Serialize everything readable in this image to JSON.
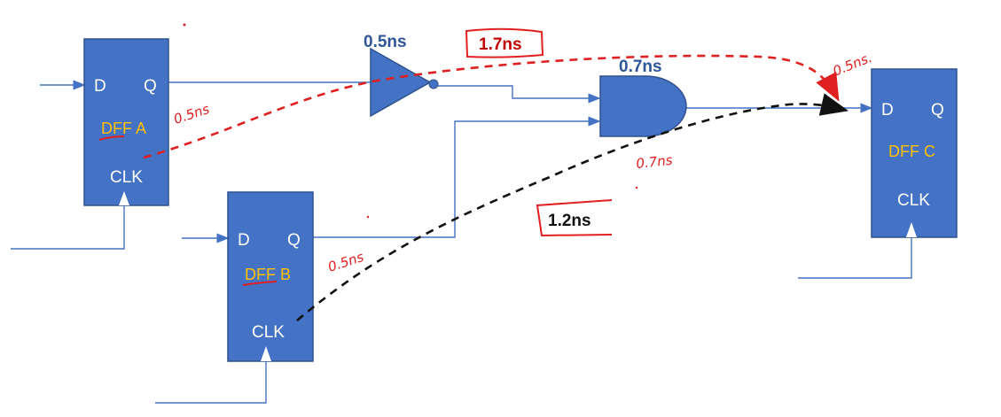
{
  "flipflops": {
    "a": {
      "d": "D",
      "q": "Q",
      "name": "DFF A",
      "clk": "CLK"
    },
    "b": {
      "d": "D",
      "q": "Q",
      "name": "DFF B",
      "clk": "CLK"
    },
    "c": {
      "d": "D",
      "q": "Q",
      "name": "DFF C",
      "clk": "CLK"
    }
  },
  "gate_delays": {
    "inverter": "0.5ns",
    "and_gate": "0.7ns"
  },
  "path_totals": {
    "red_path": "1.7ns",
    "black_path": "1.2ns"
  },
  "handwritten": {
    "dff_a_clk_to_q": "0.5ns",
    "dff_b_clk_to_q": "0.5ns",
    "and_delay": "0.7ns",
    "setup_at_c": "0.5ns."
  },
  "colors": {
    "box_fill": "#4472c4",
    "wire": "#4472c4",
    "label_yellow": "#ffc000",
    "delay_blue": "#2f5597",
    "annotation_red": "#e02020",
    "annotation_black": "#111111"
  }
}
